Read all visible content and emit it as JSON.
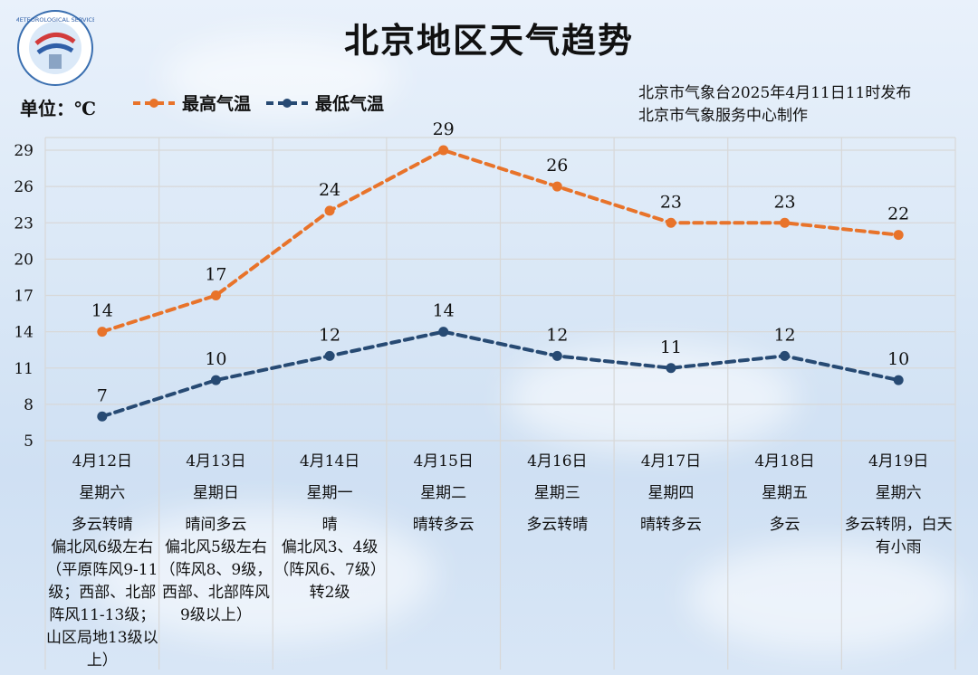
{
  "header": {
    "title": "北京地区天气趋势",
    "unit_label": "单位：℃",
    "publisher_line1": "北京市气象台2025年4月11日11时发布",
    "publisher_line2": "北京市气象服务中心制作",
    "logo_text": "METEOROLOGICAL SERVICE"
  },
  "colors": {
    "high": "#e8732a",
    "low": "#274a73",
    "grid": "#d8d8d8"
  },
  "chart_data": {
    "type": "line",
    "title": "北京地区天气趋势",
    "ylabel": "单位：℃",
    "ylim": [
      5,
      29
    ],
    "yticks": [
      29,
      26,
      23,
      20,
      17,
      14,
      11,
      8,
      5
    ],
    "grid": true,
    "legend_position": "top",
    "categories": [
      "4月12日",
      "4月13日",
      "4月14日",
      "4月15日",
      "4月16日",
      "4月17日",
      "4月18日",
      "4月19日"
    ],
    "series": [
      {
        "name": "最高气温",
        "values": [
          14,
          17,
          24,
          29,
          26,
          23,
          23,
          22
        ]
      },
      {
        "name": "最低气温",
        "values": [
          7,
          10,
          12,
          14,
          12,
          11,
          12,
          10
        ]
      }
    ]
  },
  "days": [
    {
      "date": "4月12日",
      "weekday": "星期六",
      "weather": "多云转晴",
      "wind": "偏北风6级左右（平原阵风9-11级；西部、北部阵风11-13级；山区局地13级以上）"
    },
    {
      "date": "4月13日",
      "weekday": "星期日",
      "weather": "晴间多云",
      "wind": "偏北风5级左右（阵风8、9级，西部、北部阵风9级以上）"
    },
    {
      "date": "4月14日",
      "weekday": "星期一",
      "weather": "晴",
      "wind": "偏北风3、4级（阵风6、7级）转2级"
    },
    {
      "date": "4月15日",
      "weekday": "星期二",
      "weather": "晴转多云",
      "wind": ""
    },
    {
      "date": "4月16日",
      "weekday": "星期三",
      "weather": "多云转晴",
      "wind": ""
    },
    {
      "date": "4月17日",
      "weekday": "星期四",
      "weather": "晴转多云",
      "wind": ""
    },
    {
      "date": "4月18日",
      "weekday": "星期五",
      "weather": "多云",
      "wind": ""
    },
    {
      "date": "4月19日",
      "weekday": "星期六",
      "weather": "多云转阴，白天有小雨",
      "wind": ""
    }
  ]
}
